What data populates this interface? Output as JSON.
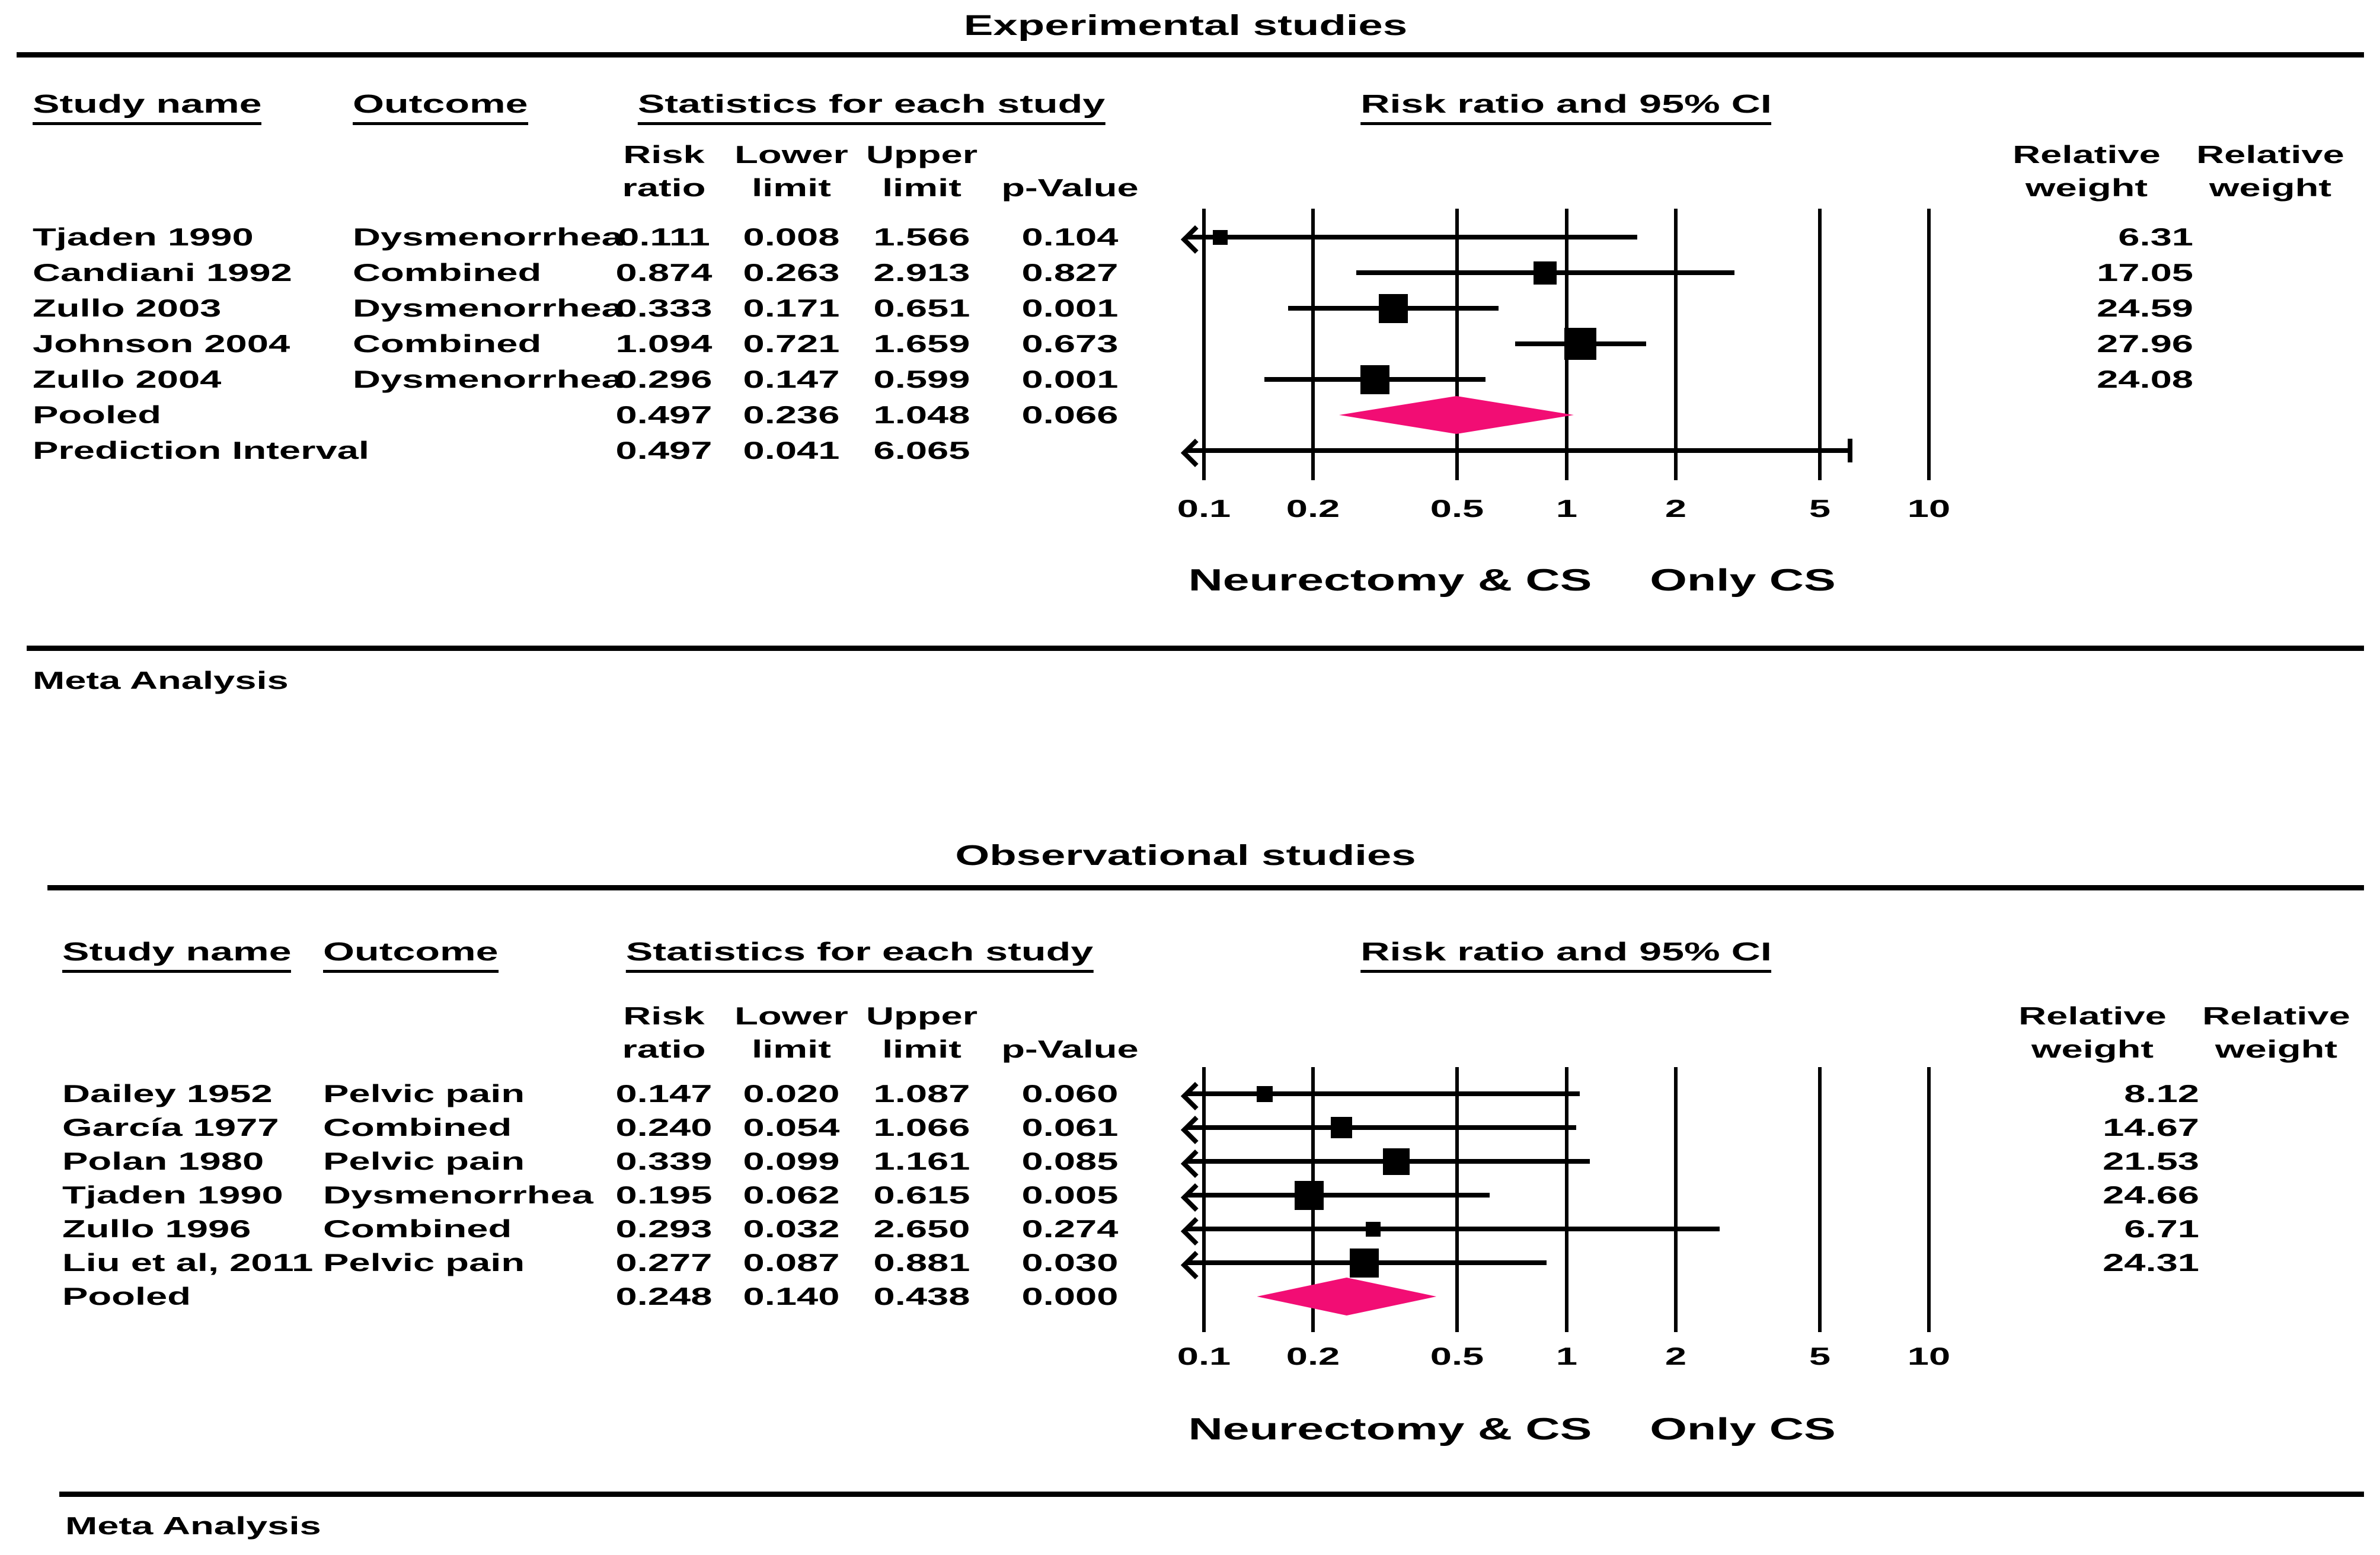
{
  "figure": {
    "colors": {
      "diamond": "#f20d74",
      "ink": "#000000"
    },
    "panels": [
      {
        "title": "Experimental studies",
        "headers": {
          "study": "Study name",
          "outcome": "Outcome",
          "stats": "Statistics for each study",
          "plot": "Risk ratio and 95% CI"
        },
        "columns": {
          "risk": [
            "Risk",
            "ratio"
          ],
          "lower": [
            "Lower",
            "limit"
          ],
          "upper": [
            "Upper",
            "limit"
          ],
          "p_value": [
            "",
            "p-Value"
          ],
          "weight_a": [
            "Relative",
            "weight"
          ],
          "weight_b": [
            "Relative",
            "weight"
          ]
        },
        "rows": [
          {
            "study": "Tjaden 1990",
            "outcome": "Dysmenorrhea",
            "risk_ratio": 0.111,
            "lower": 0.008,
            "upper": 1.566,
            "p_value": 0.104,
            "weight": 6.31,
            "type": "study"
          },
          {
            "study": "Candiani 1992",
            "outcome": "Combined",
            "risk_ratio": 0.874,
            "lower": 0.263,
            "upper": 2.913,
            "p_value": 0.827,
            "weight": 17.05,
            "type": "study"
          },
          {
            "study": "Zullo 2003",
            "outcome": "Dysmenorrhea",
            "risk_ratio": 0.333,
            "lower": 0.171,
            "upper": 0.651,
            "p_value": 0.001,
            "weight": 24.59,
            "type": "study"
          },
          {
            "study": "Johnson 2004",
            "outcome": "Combined",
            "risk_ratio": 1.094,
            "lower": 0.721,
            "upper": 1.659,
            "p_value": 0.673,
            "weight": 27.96,
            "type": "study"
          },
          {
            "study": "Zullo 2004",
            "outcome": "Dysmenorrhea",
            "risk_ratio": 0.296,
            "lower": 0.147,
            "upper": 0.599,
            "p_value": 0.001,
            "weight": 24.08,
            "type": "study"
          },
          {
            "study": "Pooled",
            "outcome": "",
            "risk_ratio": 0.497,
            "lower": 0.236,
            "upper": 1.048,
            "p_value": 0.066,
            "weight": null,
            "type": "pooled"
          },
          {
            "study": "Prediction Interval",
            "outcome": "",
            "risk_ratio": 0.497,
            "lower": 0.041,
            "upper": 6.065,
            "p_value": null,
            "weight": null,
            "type": "prediction"
          }
        ],
        "axis_ticks": [
          0.1,
          0.2,
          0.5,
          1,
          2,
          5,
          10
        ],
        "group_labels": [
          "Neurectomy & CS",
          "Only CS"
        ],
        "footer": "Meta Analysis"
      },
      {
        "title": "Observational studies",
        "headers": {
          "study": "Study name",
          "outcome": "Outcome",
          "stats": "Statistics for each study",
          "plot": "Risk ratio and 95% CI"
        },
        "columns": {
          "risk": [
            "Risk",
            "ratio"
          ],
          "lower": [
            "Lower",
            "limit"
          ],
          "upper": [
            "Upper",
            "limit"
          ],
          "p_value": [
            "",
            "p-Value"
          ],
          "weight_a": [
            "Relative",
            "weight"
          ],
          "weight_b": [
            "Relative",
            "weight"
          ]
        },
        "rows": [
          {
            "study": "Dailey 1952",
            "outcome": "Pelvic pain",
            "risk_ratio": 0.147,
            "lower": 0.02,
            "upper": 1.087,
            "p_value": 0.06,
            "weight": 8.12,
            "type": "study"
          },
          {
            "study": "García 1977",
            "outcome": "Combined",
            "risk_ratio": 0.24,
            "lower": 0.054,
            "upper": 1.066,
            "p_value": 0.061,
            "weight": 14.67,
            "type": "study"
          },
          {
            "study": "Polan 1980",
            "outcome": "Pelvic pain",
            "risk_ratio": 0.339,
            "lower": 0.099,
            "upper": 1.161,
            "p_value": 0.085,
            "weight": 21.53,
            "type": "study"
          },
          {
            "study": "Tjaden 1990",
            "outcome": "Dysmenorrhea",
            "risk_ratio": 0.195,
            "lower": 0.062,
            "upper": 0.615,
            "p_value": 0.005,
            "weight": 24.66,
            "type": "study"
          },
          {
            "study": "Zullo 1996",
            "outcome": "Combined",
            "risk_ratio": 0.293,
            "lower": 0.032,
            "upper": 2.65,
            "p_value": 0.274,
            "weight": 6.71,
            "type": "study"
          },
          {
            "study": "Liu et al, 2011",
            "outcome": "Pelvic pain",
            "risk_ratio": 0.277,
            "lower": 0.087,
            "upper": 0.881,
            "p_value": 0.03,
            "weight": 24.31,
            "type": "study"
          },
          {
            "study": "Pooled",
            "outcome": "",
            "risk_ratio": 0.248,
            "lower": 0.14,
            "upper": 0.438,
            "p_value": 0.0,
            "weight": null,
            "type": "pooled"
          }
        ],
        "axis_ticks": [
          0.1,
          0.2,
          0.5,
          1,
          2,
          5,
          10
        ],
        "group_labels": [
          "Neurectomy & CS",
          "Only CS"
        ],
        "footer": "Meta Analysis"
      }
    ]
  },
  "chart_data": [
    {
      "type": "forest",
      "title": "Experimental studies",
      "effect_measure": "Risk ratio and 95% CI",
      "x_axis": {
        "scale": "log",
        "range": [
          0.1,
          10
        ],
        "ticks": [
          0.1,
          0.2,
          0.5,
          1,
          2,
          5,
          10
        ]
      },
      "group_labels": {
        "left_of_1": "Neurectomy & CS",
        "right_of_1": "Only CS"
      },
      "studies": [
        {
          "name": "Tjaden 1990",
          "outcome": "Dysmenorrhea",
          "risk_ratio": 0.111,
          "lower": 0.008,
          "upper": 1.566,
          "p_value": 0.104,
          "relative_weight": 6.31
        },
        {
          "name": "Candiani 1992",
          "outcome": "Combined",
          "risk_ratio": 0.874,
          "lower": 0.263,
          "upper": 2.913,
          "p_value": 0.827,
          "relative_weight": 17.05
        },
        {
          "name": "Zullo 2003",
          "outcome": "Dysmenorrhea",
          "risk_ratio": 0.333,
          "lower": 0.171,
          "upper": 0.651,
          "p_value": 0.001,
          "relative_weight": 24.59
        },
        {
          "name": "Johnson 2004",
          "outcome": "Combined",
          "risk_ratio": 1.094,
          "lower": 0.721,
          "upper": 1.659,
          "p_value": 0.673,
          "relative_weight": 27.96
        },
        {
          "name": "Zullo 2004",
          "outcome": "Dysmenorrhea",
          "risk_ratio": 0.296,
          "lower": 0.147,
          "upper": 0.599,
          "p_value": 0.001,
          "relative_weight": 24.08
        }
      ],
      "pooled": {
        "risk_ratio": 0.497,
        "lower": 0.236,
        "upper": 1.048,
        "p_value": 0.066
      },
      "prediction_interval": {
        "risk_ratio": 0.497,
        "lower": 0.041,
        "upper": 6.065
      },
      "footer": "Meta Analysis"
    },
    {
      "type": "forest",
      "title": "Observational studies",
      "effect_measure": "Risk ratio and 95% CI",
      "x_axis": {
        "scale": "log",
        "range": [
          0.1,
          10
        ],
        "ticks": [
          0.1,
          0.2,
          0.5,
          1,
          2,
          5,
          10
        ]
      },
      "group_labels": {
        "left_of_1": "Neurectomy & CS",
        "right_of_1": "Only CS"
      },
      "studies": [
        {
          "name": "Dailey 1952",
          "outcome": "Pelvic pain",
          "risk_ratio": 0.147,
          "lower": 0.02,
          "upper": 1.087,
          "p_value": 0.06,
          "relative_weight": 8.12
        },
        {
          "name": "García 1977",
          "outcome": "Combined",
          "risk_ratio": 0.24,
          "lower": 0.054,
          "upper": 1.066,
          "p_value": 0.061,
          "relative_weight": 14.67
        },
        {
          "name": "Polan 1980",
          "outcome": "Pelvic pain",
          "risk_ratio": 0.339,
          "lower": 0.099,
          "upper": 1.161,
          "p_value": 0.085,
          "relative_weight": 21.53
        },
        {
          "name": "Tjaden 1990",
          "outcome": "Dysmenorrhea",
          "risk_ratio": 0.195,
          "lower": 0.062,
          "upper": 0.615,
          "p_value": 0.005,
          "relative_weight": 24.66
        },
        {
          "name": "Zullo 1996",
          "outcome": "Combined",
          "risk_ratio": 0.293,
          "lower": 0.032,
          "upper": 2.65,
          "p_value": 0.274,
          "relative_weight": 6.71
        },
        {
          "name": "Liu et al, 2011",
          "outcome": "Pelvic pain",
          "risk_ratio": 0.277,
          "lower": 0.087,
          "upper": 0.881,
          "p_value": 0.03,
          "relative_weight": 24.31
        }
      ],
      "pooled": {
        "risk_ratio": 0.248,
        "lower": 0.14,
        "upper": 0.438,
        "p_value": 0.0
      },
      "footer": "Meta Analysis"
    }
  ]
}
